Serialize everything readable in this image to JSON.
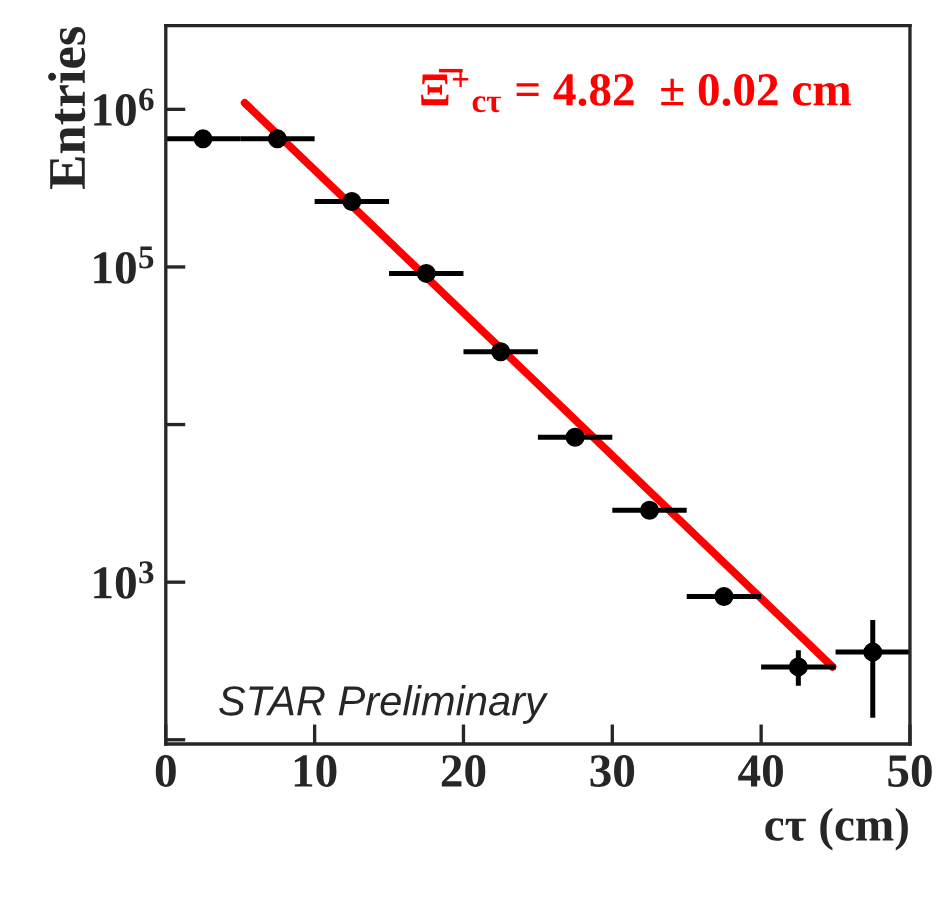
{
  "chart_data": {
    "type": "scatter",
    "xlabel": "cτ (cm)",
    "ylabel": "Entries",
    "x": [
      2.5,
      7.5,
      12.5,
      17.5,
      22.5,
      27.5,
      32.5,
      37.5,
      42.5,
      47.5
    ],
    "series": [
      {
        "color": "#000000",
        "marker": "circle",
        "values": [
          650000,
          650000,
          260000,
          91000,
          29000,
          8300,
          2860,
          810,
          290,
          360
        ],
        "errors": [
          null,
          null,
          null,
          null,
          null,
          null,
          null,
          null,
          [
            220,
            370
          ],
          [
            138,
            575
          ]
        ],
        "xerrors": [
          2.5,
          2.5,
          2.5,
          2.5,
          2.5,
          2.5,
          2.5,
          2.5,
          2.5,
          2.5
        ]
      },
      {
        "type": "line",
        "color": "#ff0000",
        "x": [
          5.3,
          44.8
        ],
        "values": [
          1100000,
          290
        ]
      }
    ],
    "annotations": [
      "Ξ̅$^{+}$$_{cτ}$ = 4.82  ± 0.02 cm",
      "STAR Preliminary"
    ],
    "log": "y",
    "xlim": [
      0,
      50
    ],
    "xticks": [
      0,
      10,
      20,
      30,
      40,
      50
    ],
    "ylim": [
      94,
      3400000
    ],
    "yticks": [
      {
        "value": 100,
        "label": null
      },
      {
        "value": 1000,
        "label": "10$^{3}$"
      },
      {
        "value": 10000,
        "label": null
      },
      {
        "value": 100000,
        "label": "10$^{5}$"
      },
      {
        "value": 1000000,
        "label": "10$^{6}$"
      }
    ],
    "grid": false,
    "legend": false
  }
}
